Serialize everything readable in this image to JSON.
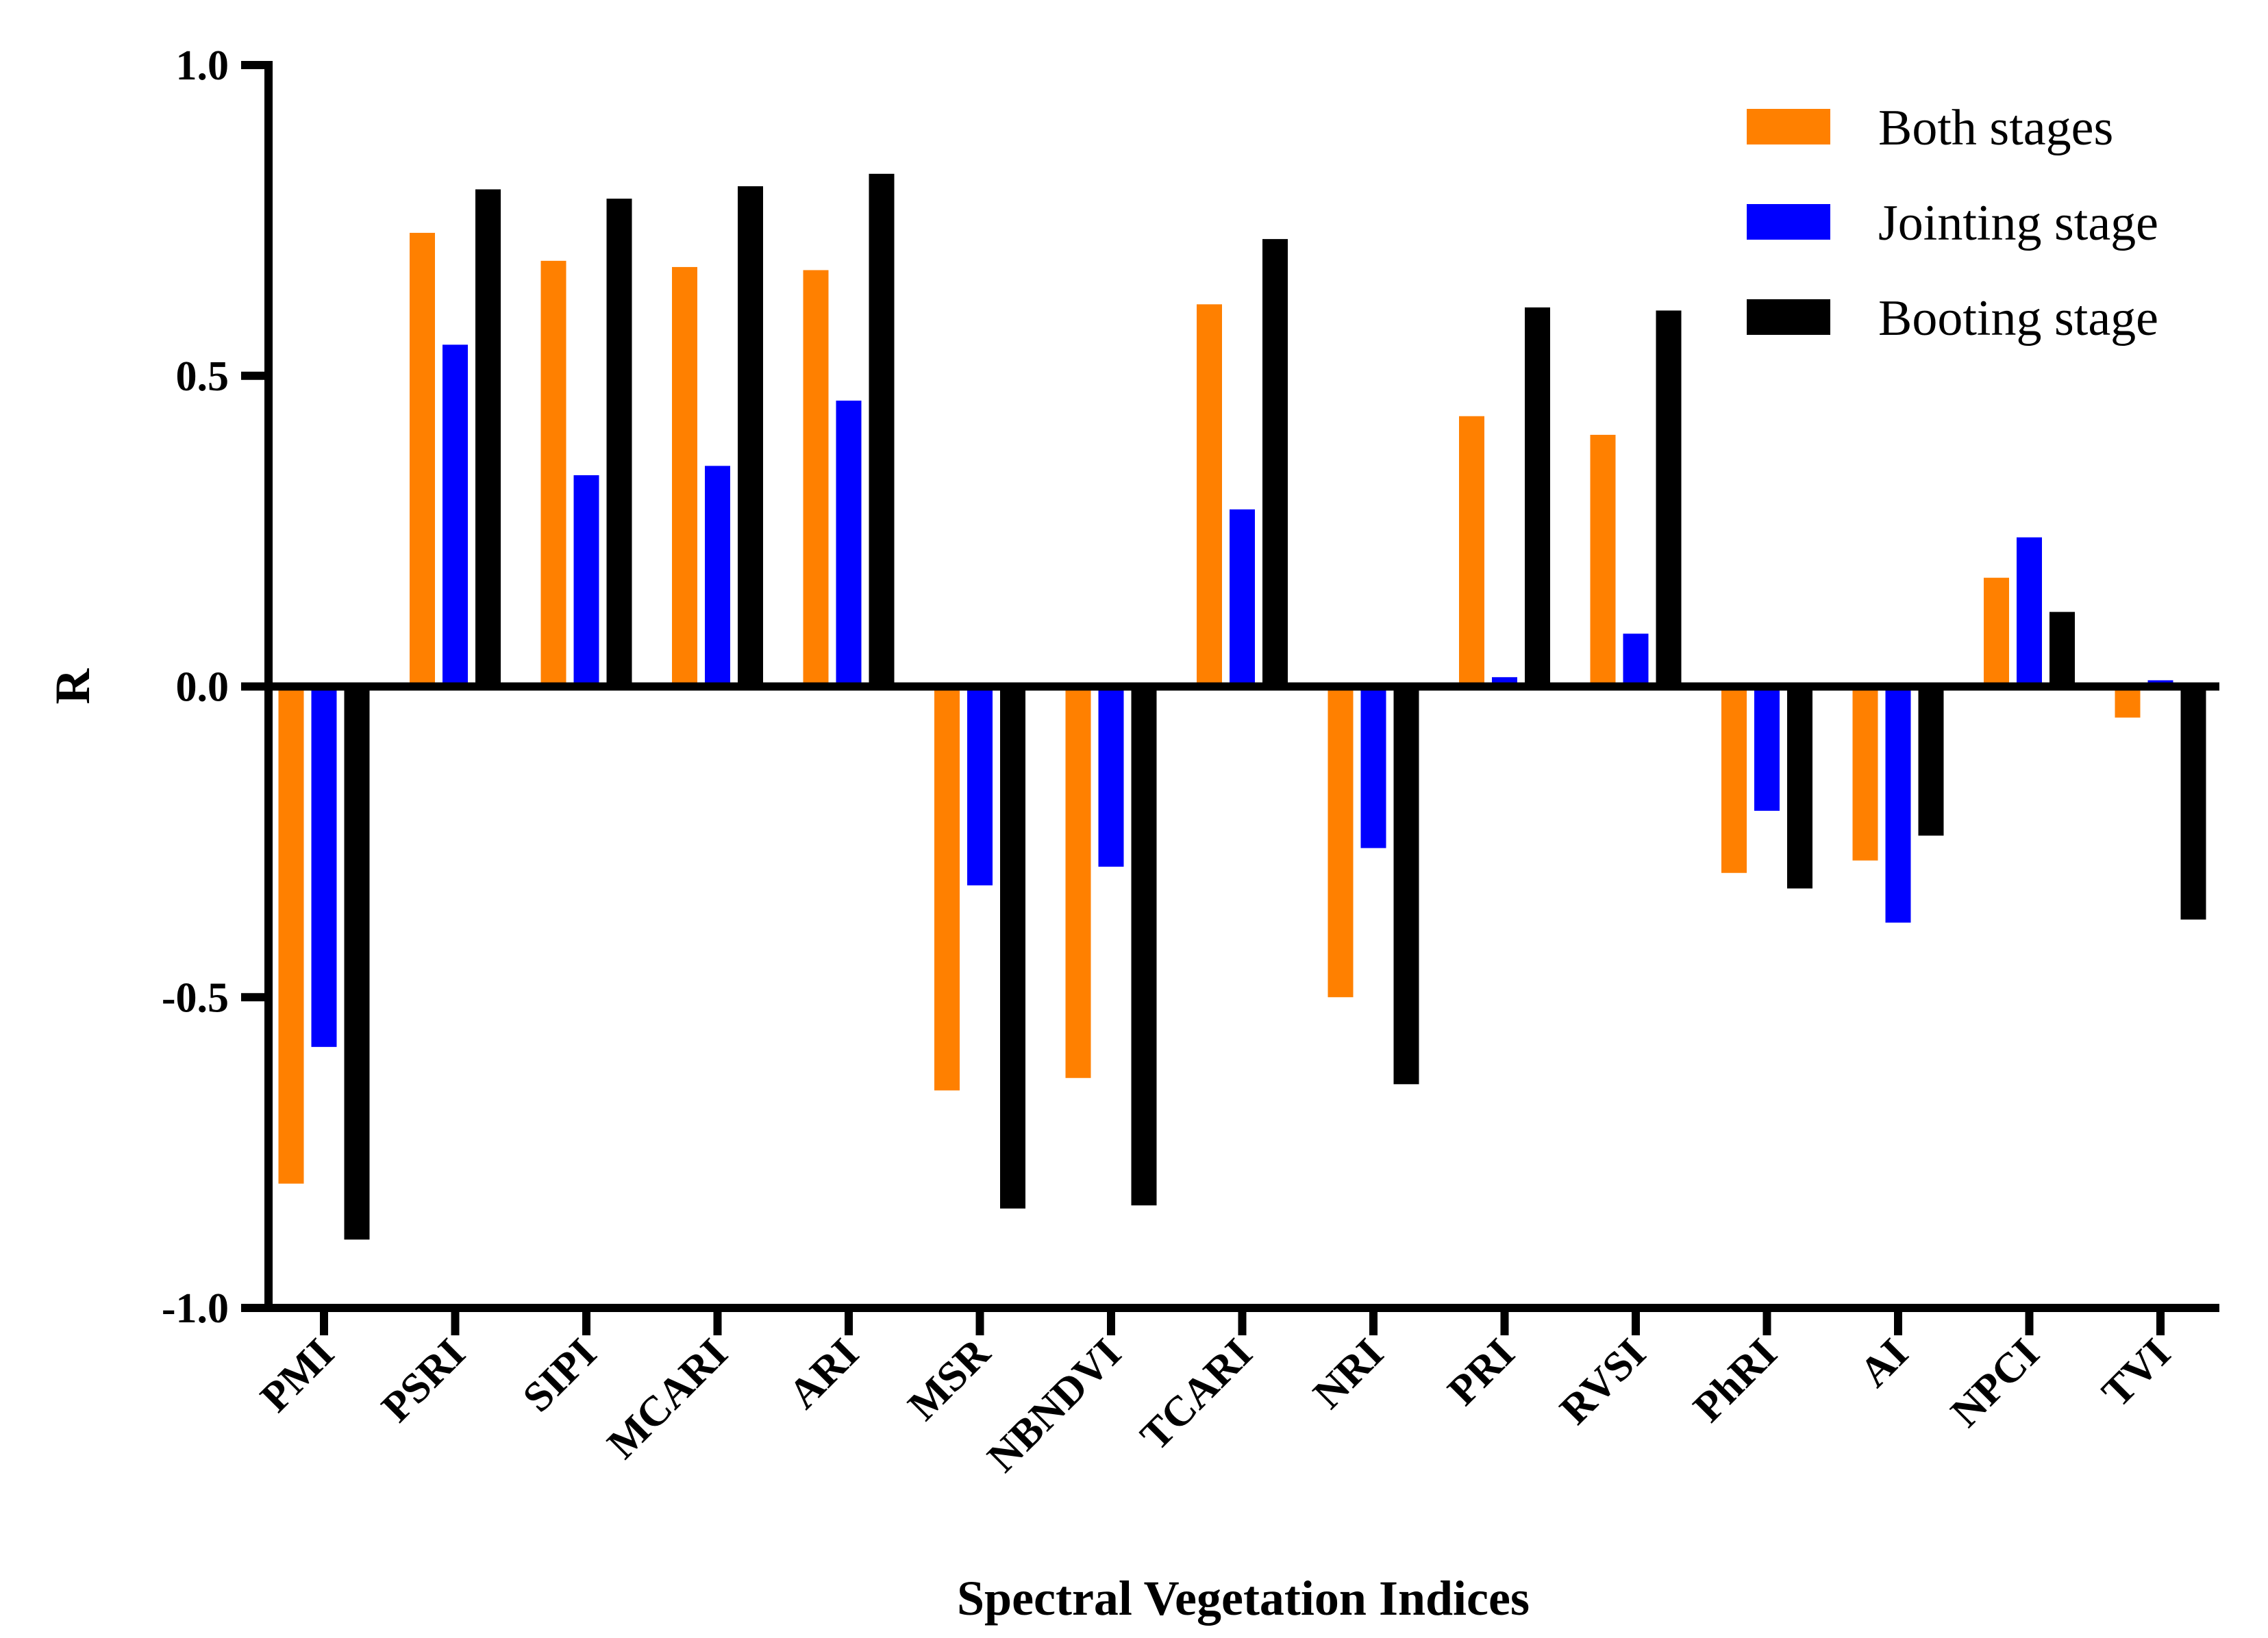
{
  "chart_data": {
    "type": "bar",
    "title": "",
    "xlabel": "Spectral Vegetation Indices",
    "ylabel": "R",
    "ylim": [
      -1.0,
      1.0
    ],
    "yticks": [
      "-1.0",
      "-0.5",
      "0.0",
      "0.5",
      "1.0"
    ],
    "ytick_values": [
      -1.0,
      -0.5,
      0.0,
      0.5,
      1.0
    ],
    "grid": false,
    "legend_position": "top-right",
    "categories": [
      "PMI",
      "PSRI",
      "SIPI",
      "MCARI",
      "ARI",
      "MSR",
      "NBNDVI",
      "TCARI",
      "NRI",
      "PRI",
      "RVSI",
      "PhRI",
      "AI",
      "NPCI",
      "TVI"
    ],
    "series": [
      {
        "name": "Both stages",
        "color": "#ff8000",
        "values": [
          -0.8,
          0.73,
          0.685,
          0.675,
          0.67,
          -0.65,
          -0.63,
          0.615,
          -0.5,
          0.435,
          0.405,
          -0.3,
          -0.28,
          0.175,
          -0.05
        ]
      },
      {
        "name": "Jointing stage",
        "color": "#0000ff",
        "values": [
          -0.58,
          0.55,
          0.34,
          0.355,
          0.46,
          -0.32,
          -0.29,
          0.285,
          -0.26,
          0.015,
          0.085,
          -0.2,
          -0.38,
          0.24,
          0.01
        ]
      },
      {
        "name": "Booting stage",
        "color": "#000000",
        "values": [
          -0.89,
          0.8,
          0.785,
          0.805,
          0.825,
          -0.84,
          -0.835,
          0.72,
          -0.64,
          0.61,
          0.605,
          -0.325,
          -0.24,
          0.12,
          -0.375
        ]
      }
    ]
  }
}
